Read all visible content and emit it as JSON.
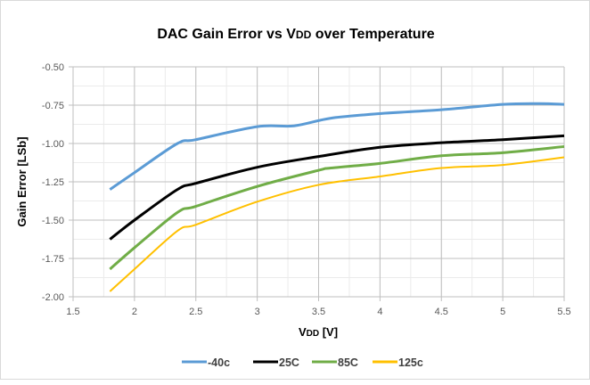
{
  "chart_data": {
    "type": "line",
    "title": {
      "main": "DAC Gain Error vs V",
      "sub": "DD",
      "rest": " over Temperature"
    },
    "xlabel": {
      "main": "V",
      "sub": "DD",
      "rest": " [V]"
    },
    "ylabel": "Gain Error [LSb]",
    "xlim": [
      1.5,
      5.5
    ],
    "ylim": [
      -2.0,
      -0.5
    ],
    "xticks": [
      "1.5",
      "2",
      "2.5",
      "3",
      "3.5",
      "4",
      "4.5",
      "5",
      "5.5"
    ],
    "yticks": [
      "-0.50",
      "-0.75",
      "-1.00",
      "-1.25",
      "-1.50",
      "-1.75",
      "-2.00"
    ],
    "grid": true,
    "legend_position": "bottom",
    "series": [
      {
        "name": "-40c",
        "color": "#5b9bd5",
        "x": [
          1.8,
          2.0,
          2.35,
          2.5,
          3.0,
          3.3,
          3.6,
          4.0,
          4.5,
          5.0,
          5.3,
          5.5
        ],
        "y": [
          -1.3,
          -1.19,
          -1.0,
          -0.975,
          -0.89,
          -0.885,
          -0.835,
          -0.805,
          -0.78,
          -0.745,
          -0.74,
          -0.745
        ]
      },
      {
        "name": "25C",
        "color": "#000000",
        "x": [
          1.8,
          2.0,
          2.35,
          2.5,
          3.0,
          3.5,
          4.0,
          4.5,
          5.0,
          5.5
        ],
        "y": [
          -1.625,
          -1.5,
          -1.3,
          -1.26,
          -1.155,
          -1.085,
          -1.025,
          -0.995,
          -0.975,
          -0.95
        ]
      },
      {
        "name": "85C",
        "color": "#70ad47",
        "x": [
          1.8,
          2.0,
          2.35,
          2.5,
          3.0,
          3.5,
          3.6,
          4.0,
          4.5,
          5.0,
          5.5
        ],
        "y": [
          -1.82,
          -1.68,
          -1.45,
          -1.41,
          -1.28,
          -1.175,
          -1.16,
          -1.13,
          -1.08,
          -1.06,
          -1.02
        ]
      },
      {
        "name": "125c",
        "color": "#ffc000",
        "x": [
          1.8,
          2.0,
          2.35,
          2.5,
          3.0,
          3.5,
          4.0,
          4.5,
          5.0,
          5.5
        ],
        "y": [
          -1.965,
          -1.82,
          -1.57,
          -1.53,
          -1.38,
          -1.27,
          -1.215,
          -1.16,
          -1.14,
          -1.09
        ]
      }
    ]
  }
}
